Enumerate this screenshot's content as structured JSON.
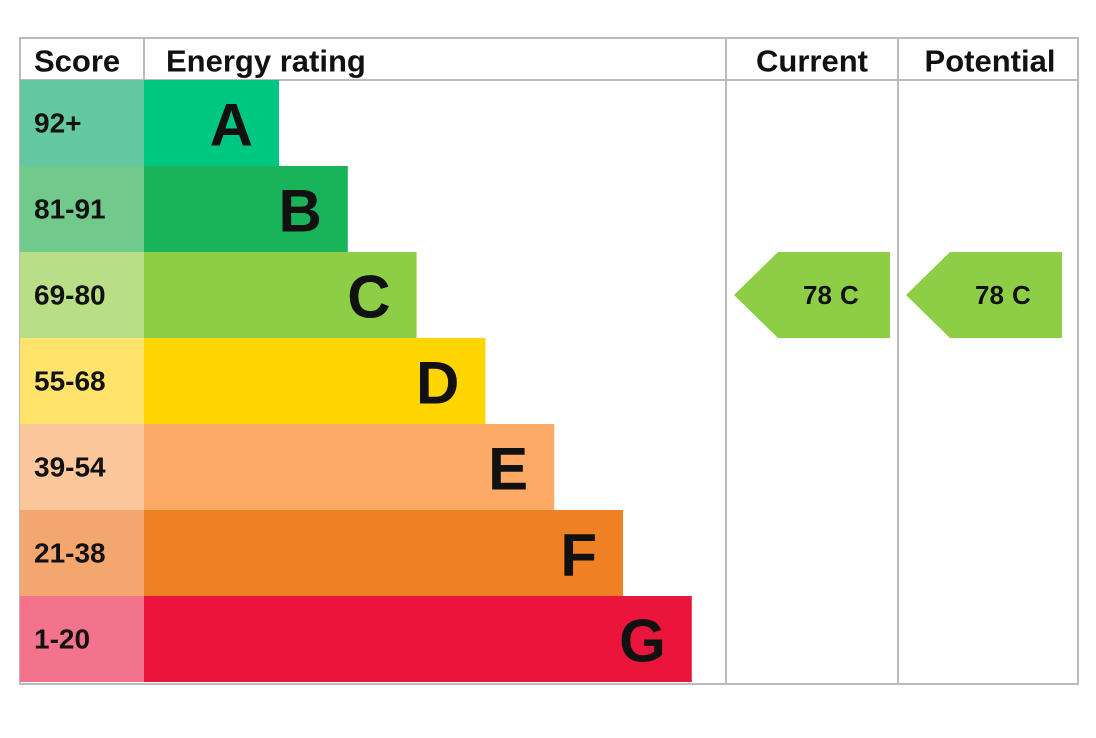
{
  "headers": {
    "score": "Score",
    "rating": "Energy rating",
    "current": "Current",
    "potential": "Potential"
  },
  "bands": [
    {
      "score": "92+",
      "letter": "A"
    },
    {
      "score": "81-91",
      "letter": "B"
    },
    {
      "score": "69-80",
      "letter": "C"
    },
    {
      "score": "55-68",
      "letter": "D"
    },
    {
      "score": "39-54",
      "letter": "E"
    },
    {
      "score": "21-38",
      "letter": "F"
    },
    {
      "score": "1-20",
      "letter": "G"
    }
  ],
  "current": {
    "value": 78,
    "letter": "C"
  },
  "potential": {
    "value": 78,
    "letter": "C"
  }
}
